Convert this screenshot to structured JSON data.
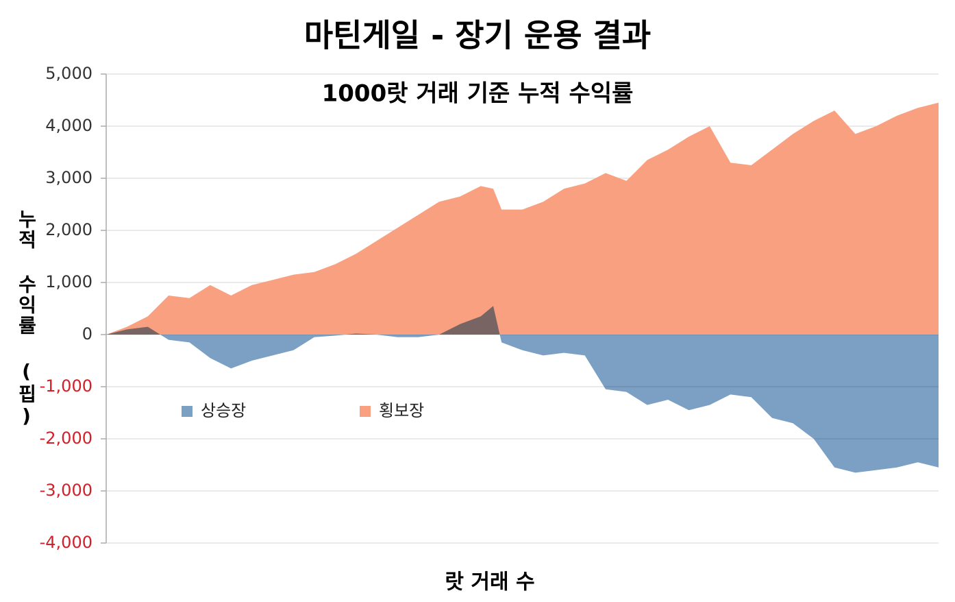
{
  "chart_data": {
    "type": "area",
    "title": "마틴게일 - 장기 운용 결과",
    "subtitle": "1000랏 거래 기준 누적 수익률",
    "x_label": "랏 거래 수",
    "y_label": "누적 수익률 (핍)",
    "x": [
      0,
      25,
      50,
      75,
      100,
      125,
      150,
      175,
      200,
      225,
      250,
      275,
      300,
      325,
      350,
      375,
      400,
      425,
      450,
      465,
      475,
      500,
      525,
      550,
      575,
      600,
      625,
      650,
      675,
      700,
      725,
      750,
      775,
      800,
      825,
      850,
      875,
      900,
      925,
      950,
      975,
      1000
    ],
    "xlim": [
      0,
      1000
    ],
    "ylim": [
      -4000,
      5000
    ],
    "yticks": [
      {
        "value": 5000,
        "label": "5,000"
      },
      {
        "value": 4000,
        "label": "4,000"
      },
      {
        "value": 3000,
        "label": "3,000"
      },
      {
        "value": 2000,
        "label": "2,000"
      },
      {
        "value": 1000,
        "label": "1,000"
      },
      0,
      {
        "value": -1000,
        "label": "-1,000"
      },
      {
        "value": -2000,
        "label": "-2,000"
      },
      {
        "value": -3000,
        "label": "-3,000"
      },
      {
        "value": -4000,
        "label": "-4,000"
      }
    ],
    "grid": true,
    "series": [
      {
        "name": "상승장",
        "color": "#7ba0c4",
        "values": [
          0,
          100,
          150,
          -100,
          -150,
          -450,
          -650,
          -500,
          -400,
          -300,
          -50,
          -20,
          20,
          0,
          -50,
          -50,
          0,
          200,
          350,
          550,
          -150,
          -300,
          -400,
          -350,
          -400,
          -1050,
          -1100,
          -1350,
          -1250,
          -1450,
          -1350,
          -1150,
          -1200,
          -1600,
          -1700,
          -2000,
          -2550,
          -2650,
          -2600,
          -2550,
          -2450,
          -2550
        ]
      },
      {
        "name": "횡보장",
        "color": "#f9a080",
        "values": [
          0,
          150,
          350,
          750,
          700,
          950,
          750,
          950,
          1050,
          1150,
          1200,
          1350,
          1550,
          1800,
          2050,
          2300,
          2550,
          2650,
          2850,
          2800,
          2400,
          2400,
          2550,
          2800,
          2900,
          3100,
          2950,
          3350,
          3550,
          3800,
          4000,
          3300,
          3250,
          3550,
          3850,
          4100,
          4300,
          3850,
          4000,
          4200,
          4350,
          4450
        ]
      }
    ]
  }
}
